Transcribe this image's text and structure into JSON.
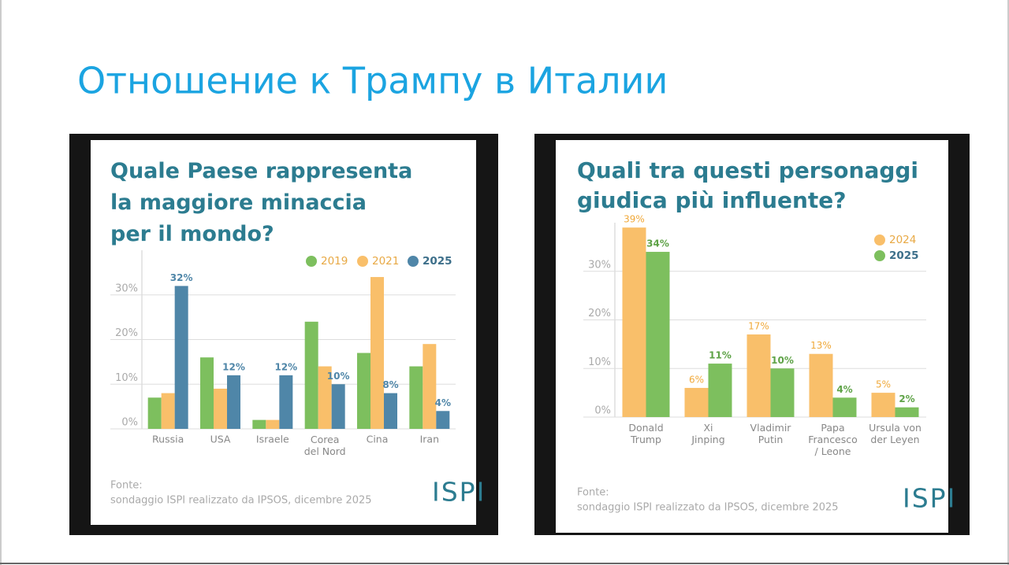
{
  "title": "Отношение к Трампу в Италии",
  "chart_data": [
    {
      "type": "bar",
      "title": "Quale Paese rappresenta\nla maggiore minaccia\nper il mondo?",
      "categories": [
        "Russia",
        "USA",
        "Israele",
        "Corea\ndel Nord",
        "Cina",
        "Iran"
      ],
      "series": [
        {
          "name": "2019",
          "color": "#7dbf5e",
          "values": [
            7,
            16,
            2,
            24,
            17,
            14
          ]
        },
        {
          "name": "2021",
          "color": "#f9bf6a",
          "values": [
            8,
            9,
            2,
            14,
            34,
            19
          ]
        },
        {
          "name": "2025",
          "color": "#4f86a8",
          "values": [
            32,
            12,
            12,
            10,
            8,
            4
          ],
          "value_labels": [
            "32%",
            "12%",
            "12%",
            "10%",
            "8%",
            "4%"
          ]
        }
      ],
      "ylim": [
        0,
        40
      ],
      "yticks": [
        {
          "value": 0,
          "label": "0%"
        },
        {
          "value": 10,
          "label": "10%"
        },
        {
          "value": 20,
          "label": "20%"
        },
        {
          "value": 30,
          "label": "30%"
        }
      ],
      "grid": true,
      "legend": "top-right",
      "source": [
        "Fonte:",
        "sondaggio ISPI realizzato da IPSOS, dicembre 2025"
      ],
      "logo": "ISPI"
    },
    {
      "type": "bar",
      "title": "Quali tra questi personaggi\ngiudica più influente?",
      "categories": [
        "Donald\nTrump",
        "Xi\nJinping",
        "Vladimir\nPutin",
        "Papa\nFrancesco\n/ Leone",
        "Ursula von\nder Leyen"
      ],
      "series": [
        {
          "name": "2024",
          "color": "#f9bf6a",
          "values": [
            39,
            6,
            17,
            13,
            5
          ],
          "value_labels": [
            "39%",
            "6%",
            "17%",
            "13%",
            "5%"
          ]
        },
        {
          "name": "2025",
          "color": "#7dbf5e",
          "values": [
            34,
            11,
            10,
            4,
            2
          ],
          "value_labels": [
            "34%",
            "11%",
            "10%",
            "4%",
            "2%"
          ]
        }
      ],
      "ylim": [
        0,
        40
      ],
      "yticks": [
        {
          "value": 0,
          "label": "0%"
        },
        {
          "value": 10,
          "label": "10%"
        },
        {
          "value": 20,
          "label": "20%"
        },
        {
          "value": 30,
          "label": "30%"
        }
      ],
      "grid": true,
      "legend": "top-right",
      "source": [
        "Fonte:",
        "sondaggio ISPI realizzato da IPSOS, dicembre 2025"
      ],
      "logo": "ISPI"
    }
  ]
}
